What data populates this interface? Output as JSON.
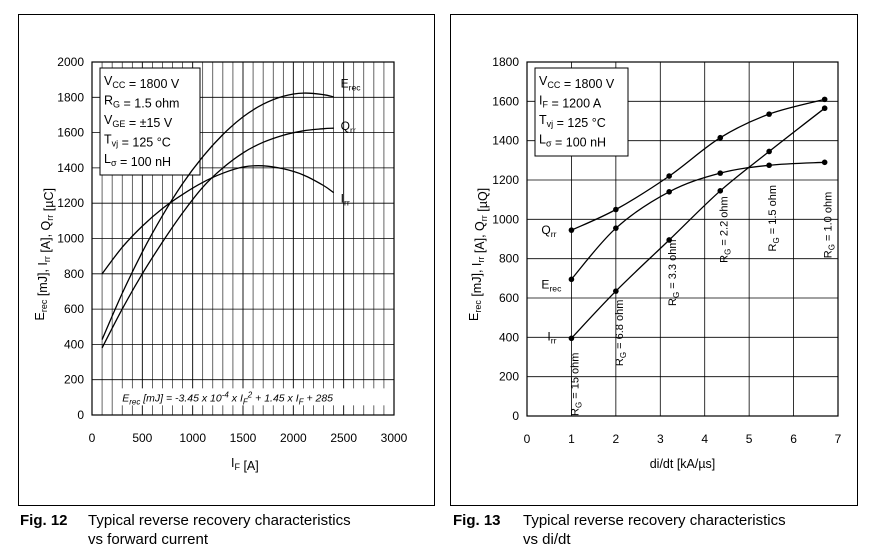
{
  "charts": [
    {
      "conditions": [
        {
          "main": "V",
          "sub": "CC",
          "rest": " = 1800 V"
        },
        {
          "main": "R",
          "sub": "G",
          "rest": " = 1.5 ohm"
        },
        {
          "main": "V",
          "sub": "GE",
          "rest": " = ±15 V"
        },
        {
          "main": "T",
          "sub": "vj",
          "rest": " = 125 °C"
        },
        {
          "main": "L",
          "sub": "σ",
          "rest": " = 100 nH"
        }
      ],
      "ylabel": {
        "parts": [
          [
            "E",
            "rec"
          ],
          [
            " [mJ], I",
            ""
          ],
          [
            "",
            "rr"
          ],
          [
            " [A], Q",
            ""
          ],
          [
            "",
            "rr"
          ],
          [
            " [µC]",
            ""
          ]
        ]
      },
      "xlabel": {
        "main": "I",
        "sub": "F",
        "rest": " [A]"
      },
      "equation": "E rec [mJ] = -3.45 x 10^-4 x I F ^2 + 1.45 x I F + 285",
      "colors": {
        "line": "#000000",
        "grid": "#000000"
      }
    },
    {
      "conditions": [
        {
          "main": "V",
          "sub": "CC",
          "rest": " = 1800 V"
        },
        {
          "main": "I",
          "sub": "F",
          "rest": " = 1200 A"
        },
        {
          "main": "T",
          "sub": "vj",
          "rest": " = 125 °C"
        },
        {
          "main": "L",
          "sub": "σ",
          "rest": " = 100 nH"
        }
      ],
      "ylabel": {
        "parts": [
          [
            "E",
            "rec"
          ],
          [
            " [mJ], I",
            ""
          ],
          [
            "",
            "rr"
          ],
          [
            " [A], Q",
            ""
          ],
          [
            "",
            "rr"
          ],
          [
            " [µQ]",
            ""
          ]
        ]
      },
      "xlabel": {
        "main": "di/dt [kA/µs]",
        "sub": "",
        "rest": ""
      },
      "rg_labels": [
        "R G = 15 ohm",
        "R G = 6.8 ohm",
        "R G = 3.3 ohm",
        "R G = 2.2 ohm",
        "R G = 1.5 ohm",
        "R G = 1.0 ohm"
      ],
      "colors": {
        "line": "#000000",
        "grid": "#000000"
      }
    }
  ],
  "chart_data": [
    {
      "type": "line",
      "xlim": [
        0,
        3000
      ],
      "ylim": [
        0,
        2000
      ],
      "xticks": [
        0,
        500,
        1000,
        1500,
        2000,
        2500,
        3000
      ],
      "yticks": [
        0,
        200,
        400,
        600,
        800,
        1000,
        1200,
        1400,
        1600,
        1800,
        2000
      ],
      "grid": true,
      "series": [
        {
          "name": "Erec",
          "x": [
            100,
            300,
            500,
            700,
            900,
            1100,
            1300,
            1500,
            1700,
            1900,
            2100,
            2300,
            2400
          ],
          "y": [
            427,
            689,
            923,
            1130,
            1311,
            1463,
            1589,
            1689,
            1761,
            1806,
            1824,
            1815,
            1802
          ]
        },
        {
          "name": "Qrr",
          "x": [
            100,
            300,
            500,
            700,
            900,
            1100,
            1300,
            1500,
            1700,
            1900,
            2100,
            2300,
            2400
          ],
          "y": [
            380,
            600,
            800,
            980,
            1145,
            1290,
            1400,
            1485,
            1545,
            1585,
            1610,
            1622,
            1625
          ]
        },
        {
          "name": "Irr",
          "x": [
            100,
            300,
            500,
            700,
            900,
            1100,
            1300,
            1500,
            1700,
            1900,
            2100,
            2300,
            2400
          ],
          "y": [
            800,
            950,
            1070,
            1170,
            1250,
            1318,
            1370,
            1405,
            1412,
            1395,
            1360,
            1300,
            1260
          ]
        }
      ]
    },
    {
      "type": "line",
      "xlim": [
        0,
        7
      ],
      "ylim": [
        0,
        1800
      ],
      "xticks": [
        0,
        1,
        2,
        3,
        4,
        5,
        6,
        7
      ],
      "yticks": [
        0,
        200,
        400,
        600,
        800,
        1000,
        1200,
        1400,
        1600,
        1800
      ],
      "grid": true,
      "x_points": [
        1.0,
        2.0,
        3.2,
        4.35,
        5.45,
        6.7
      ],
      "series": [
        {
          "name": "Qrr",
          "x": [
            1.0,
            2.0,
            3.2,
            4.35,
            5.45,
            6.7
          ],
          "y": [
            945,
            1050,
            1220,
            1415,
            1535,
            1610
          ]
        },
        {
          "name": "Erec",
          "x": [
            1.0,
            2.0,
            3.2,
            4.35,
            5.45,
            6.7
          ],
          "y": [
            695,
            955,
            1140,
            1235,
            1275,
            1290
          ]
        },
        {
          "name": "Irr",
          "x": [
            1.0,
            2.0,
            3.2,
            4.35,
            5.45,
            6.7
          ],
          "y": [
            395,
            635,
            895,
            1145,
            1345,
            1565
          ]
        }
      ]
    }
  ],
  "captions": [
    {
      "fig": "Fig. 12",
      "line1": "Typical reverse recovery characteristics",
      "line2": "vs forward current"
    },
    {
      "fig": "Fig. 13",
      "line1": "Typical reverse recovery characteristics",
      "line2": "vs di/dt"
    }
  ]
}
